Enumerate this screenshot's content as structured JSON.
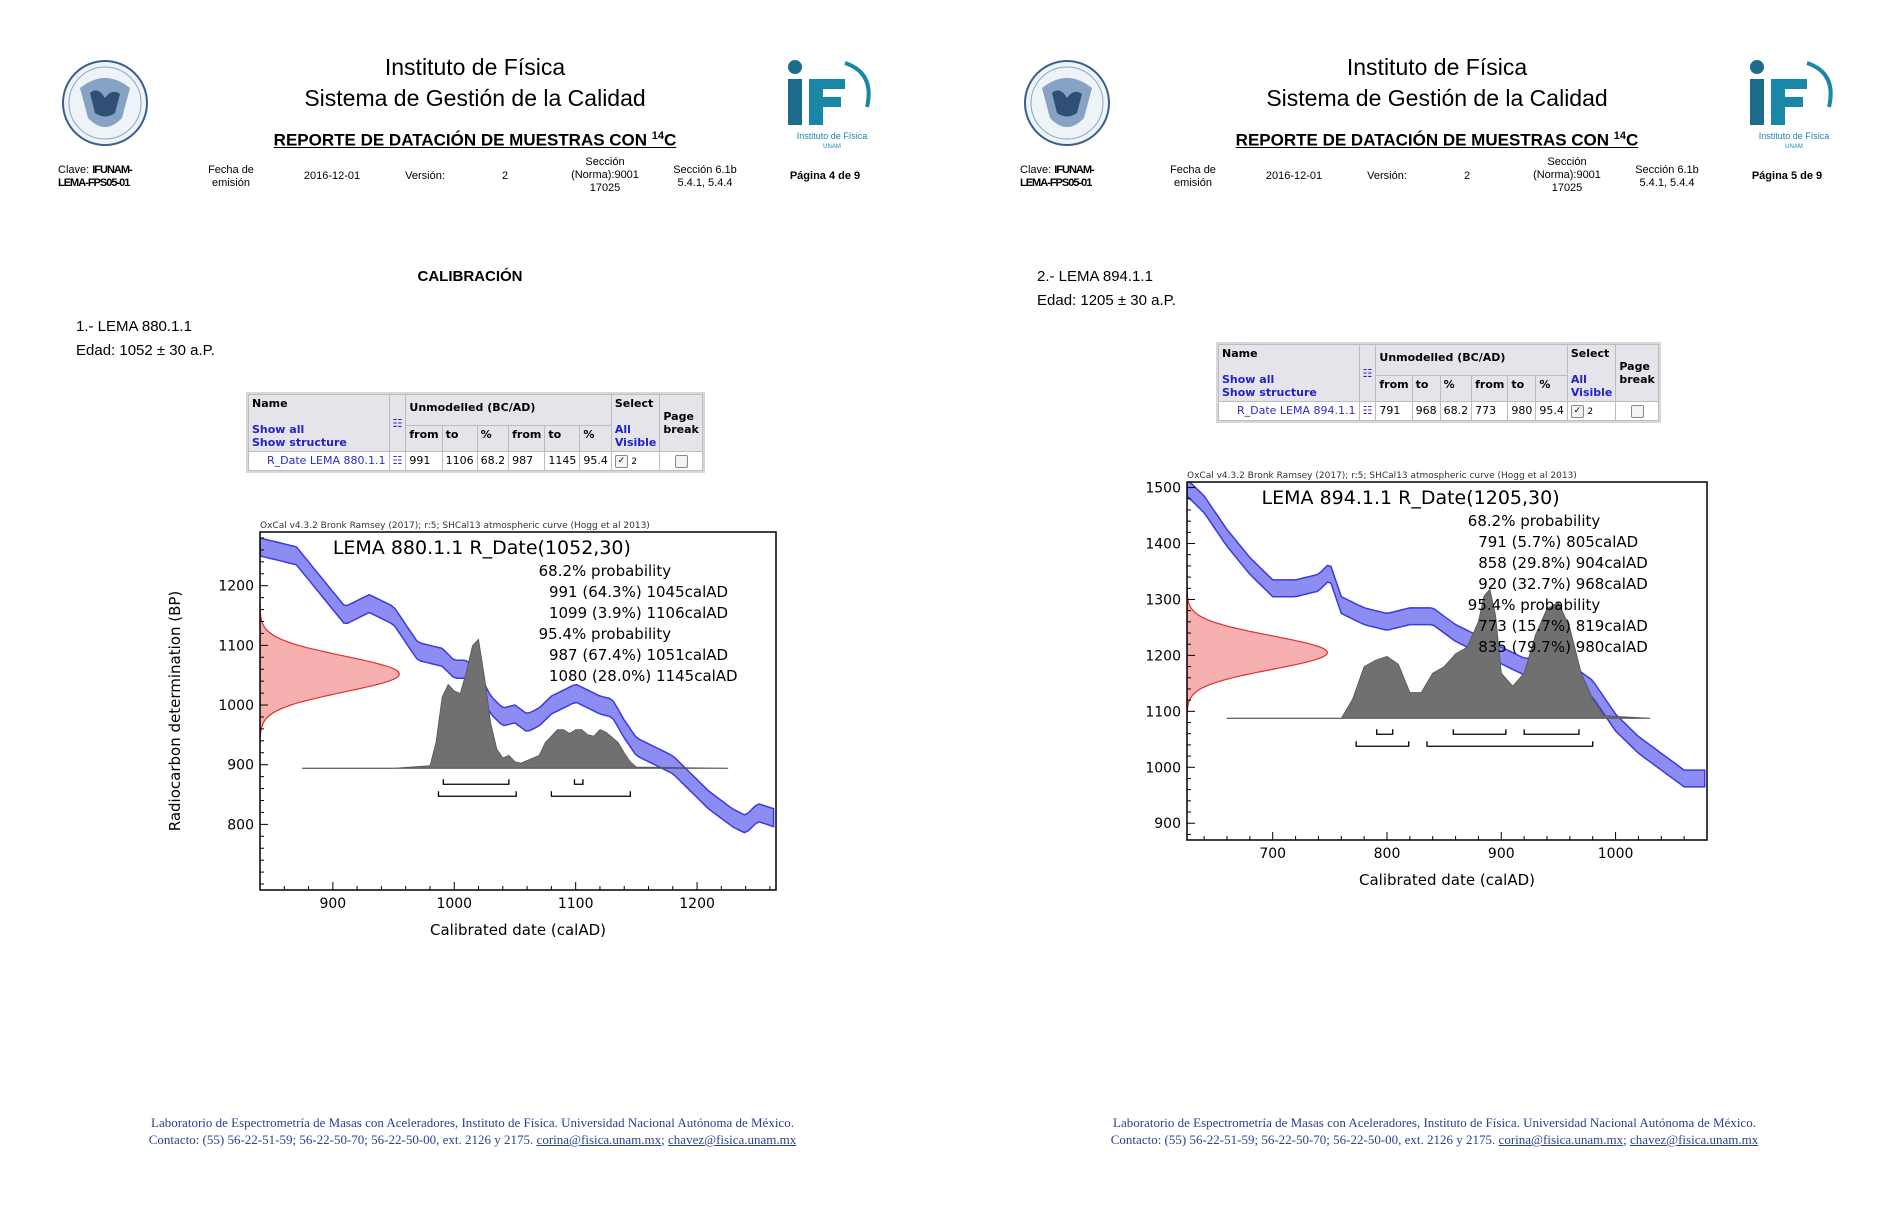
{
  "pages": [
    {
      "header": {
        "institute": "Instituto de Física",
        "system": "Sistema de Gestión de la Calidad",
        "report_prefix": "REPORTE DE DATACIÓN DE MUESTRAS CON ",
        "report_sup": "14",
        "report_suffix": "C",
        "clave_label": "Clave:",
        "clave_value_1": "IFUNAM-",
        "clave_value_2": "LEMA-FPS05-01",
        "fecha_label_1": "Fecha de",
        "fecha_label_2": "emisión",
        "fecha": "2016-12-01",
        "version_label": "Versión:",
        "version": "2",
        "seccion_norma_1": "Sección",
        "seccion_norma_2": "(Norma):9001",
        "seccion_norma_3": "17025",
        "seccion_61_1": "Sección 6.1b",
        "seccion_61_2": "5.4.1, 5.4.4",
        "page_label": "Página 4 de 9",
        "logo_if_text": "Instituto de Física",
        "logo_if_sub": "UNAM"
      },
      "section_title": "CALIBRACIÓN",
      "sample_name": "1.- LEMA 880.1.1",
      "sample_age": "Edad: 1052 ± 30 a.P.",
      "table": {
        "h_name": "Name",
        "h_show_all": "Show all",
        "h_show_structure": "Show structure",
        "h_unmodelled": "Unmodelled (BC/AD)",
        "h_select": "Select",
        "h_all": "All",
        "h_visible": "Visible",
        "h_page": "Page",
        "h_break": "break",
        "cols": [
          "from",
          "to",
          "%",
          "from",
          "to",
          "%"
        ],
        "row_name": "R_Date LEMA 880.1.1",
        "row_values": [
          "991",
          "1106",
          "68.2",
          "987",
          "1145",
          "95.4"
        ],
        "row_select": "2"
      },
      "footer": {
        "line1": "Laboratorio de Espectrometría de Masas con Aceleradores, Instituto de Física. Universidad Nacional Autónoma de México.",
        "line2_prefix": "Contacto: (55) 56-22-51-59; 56-22-50-70; 56-22-50-00, ext. 2126 y 2175. ",
        "email1": "corina@fisica.unam.mx",
        "sep": "; ",
        "email2": "chavez@fisica.unam.mx"
      }
    },
    {
      "header": {
        "institute": "Instituto de Física",
        "system": "Sistema de Gestión de la Calidad",
        "report_prefix": "REPORTE DE DATACIÓN DE MUESTRAS CON ",
        "report_sup": "14",
        "report_suffix": "C",
        "clave_label": "Clave:",
        "clave_value_1": "IFUNAM-",
        "clave_value_2": "LEMA-FPS05-01",
        "fecha_label_1": "Fecha de",
        "fecha_label_2": "emisión",
        "fecha": "2016-12-01",
        "version_label": "Versión:",
        "version": "2",
        "seccion_norma_1": "Sección",
        "seccion_norma_2": "(Norma):9001",
        "seccion_norma_3": "17025",
        "seccion_61_1": "Sección 6.1b",
        "seccion_61_2": "5.4.1, 5.4.4",
        "page_label": "Página 5 de 9",
        "logo_if_text": "Instituto de Física",
        "logo_if_sub": "UNAM"
      },
      "sample_name": "2.- LEMA 894.1.1",
      "sample_age": "Edad: 1205 ± 30 a.P.",
      "table": {
        "h_name": "Name",
        "h_show_all": "Show all",
        "h_show_structure": "Show structure",
        "h_unmodelled": "Unmodelled (BC/AD)",
        "h_select": "Select",
        "h_all": "All",
        "h_visible": "Visible",
        "h_page": "Page",
        "h_break": "break",
        "cols": [
          "from",
          "to",
          "%",
          "from",
          "to",
          "%"
        ],
        "row_name": "R_Date LEMA 894.1.1",
        "row_values": [
          "791",
          "968",
          "68.2",
          "773",
          "980",
          "95.4"
        ],
        "row_select": "2"
      },
      "footer": {
        "line1": "Laboratorio de Espectrometría de Masas con Aceleradores, Instituto de Física. Universidad Nacional Autónoma de México.",
        "line2_prefix": "Contacto: (55) 56-22-51-59; 56-22-50-70; 56-22-50-00, ext. 2126 y 2175. ",
        "email1": "corina@fisica.unam.mx",
        "sep": "; ",
        "email2": "chavez@fisica.unam.mx"
      }
    }
  ],
  "chart_data": [
    {
      "type": "area",
      "credit": "OxCal v4.3.2 Bronk Ramsey (2017); r:5; SHCal13 atmospheric curve (Hogg et al 2013)",
      "title": "LEMA 880.1.1 R_Date(1052,30)",
      "annotations": [
        "68.2% probability",
        "991 (64.3%) 1045calAD",
        "1099 (3.9%) 1106calAD",
        "95.4% probability",
        "987 (67.4%) 1051calAD",
        "1080 (28.0%) 1145calAD"
      ],
      "xlabel": "Calibrated date (calAD)",
      "ylabel": "Radiocarbon determination (BP)",
      "xlim": [
        840,
        1265
      ],
      "ylim": [
        690,
        1290
      ],
      "xticks": [
        900,
        1000,
        1100,
        1200
      ],
      "yticks": [
        800,
        900,
        1000,
        1100,
        1200
      ],
      "radiocarbon_date": {
        "mean": 1052,
        "sigma": 30
      },
      "calibration_curve": {
        "x": [
          840,
          850,
          870,
          890,
          910,
          930,
          950,
          970,
          990,
          1000,
          1010,
          1020,
          1030,
          1040,
          1050,
          1060,
          1070,
          1080,
          1090,
          1100,
          1110,
          1120,
          1130,
          1140,
          1150,
          1160,
          1170,
          1180,
          1190,
          1200,
          1210,
          1220,
          1230,
          1240,
          1250,
          1265
        ],
        "y": [
          1265,
          1260,
          1250,
          1200,
          1150,
          1170,
          1150,
          1090,
          1080,
          1060,
          1060,
          1040,
          1000,
          980,
          985,
          970,
          980,
          1000,
          1010,
          1020,
          1010,
          1000,
          995,
          960,
          930,
          920,
          910,
          900,
          880,
          860,
          840,
          825,
          810,
          800,
          820,
          810
        ],
        "halfwidth": 15
      },
      "posterior": {
        "x": [
          875,
          950,
          980,
          985,
          990,
          995,
          1000,
          1005,
          1010,
          1015,
          1020,
          1025,
          1030,
          1035,
          1040,
          1045,
          1050,
          1055,
          1060,
          1065,
          1070,
          1075,
          1080,
          1085,
          1090,
          1095,
          1100,
          1105,
          1110,
          1115,
          1120,
          1125,
          1130,
          1135,
          1140,
          1145,
          1150,
          1225
        ],
        "density": [
          0.0,
          0.0,
          0.02,
          0.2,
          0.55,
          0.65,
          0.6,
          0.58,
          0.75,
          0.95,
          1.0,
          0.7,
          0.35,
          0.15,
          0.08,
          0.1,
          0.05,
          0.04,
          0.06,
          0.08,
          0.1,
          0.2,
          0.25,
          0.3,
          0.3,
          0.27,
          0.3,
          0.3,
          0.26,
          0.25,
          0.3,
          0.28,
          0.24,
          0.2,
          0.12,
          0.05,
          0.01,
          0.0
        ]
      },
      "ranges_68": [
        [
          991,
          1045
        ],
        [
          1099,
          1106
        ]
      ],
      "ranges_95": [
        [
          987,
          1051
        ],
        [
          1080,
          1145
        ]
      ]
    },
    {
      "type": "area",
      "credit": "OxCal v4.3.2 Bronk Ramsey (2017); r:5; SHCal13 atmospheric curve (Hogg et al 2013)",
      "title": "LEMA 894.1.1 R_Date(1205,30)",
      "annotations": [
        "68.2% probability",
        "791 (5.7%) 805calAD",
        "858 (29.8%) 904calAD",
        "920 (32.7%) 968calAD",
        "95.4% probability",
        "773 (15.7%) 819calAD",
        "835 (79.7%) 980calAD"
      ],
      "xlabel": "Calibrated date (calAD)",
      "ylabel": "Radiocarbon determination (BP)",
      "xlim": [
        625,
        1080
      ],
      "ylim": [
        870,
        1510
      ],
      "xticks": [
        700,
        800,
        900,
        1000
      ],
      "yticks": [
        900,
        1000,
        1100,
        1200,
        1300,
        1400,
        1500
      ],
      "radiocarbon_date": {
        "mean": 1205,
        "sigma": 30
      },
      "calibration_curve": {
        "x": [
          625,
          640,
          660,
          680,
          700,
          720,
          740,
          750,
          760,
          780,
          800,
          820,
          840,
          860,
          880,
          900,
          920,
          940,
          960,
          980,
          1000,
          1020,
          1040,
          1060,
          1080
        ],
        "y": [
          1500,
          1470,
          1410,
          1360,
          1320,
          1320,
          1330,
          1350,
          1290,
          1270,
          1260,
          1270,
          1270,
          1240,
          1220,
          1200,
          1180,
          1180,
          1170,
          1140,
          1080,
          1040,
          1010,
          980,
          980
        ],
        "halfwidth": 15
      },
      "posterior": {
        "x": [
          660,
          760,
          770,
          780,
          790,
          800,
          810,
          820,
          830,
          840,
          850,
          860,
          870,
          880,
          885,
          890,
          895,
          900,
          910,
          920,
          930,
          940,
          950,
          960,
          970,
          980,
          990,
          1030
        ],
        "density": [
          0.0,
          0.0,
          0.15,
          0.4,
          0.45,
          0.48,
          0.42,
          0.2,
          0.2,
          0.35,
          0.4,
          0.5,
          0.55,
          0.75,
          0.95,
          1.0,
          0.8,
          0.35,
          0.25,
          0.35,
          0.65,
          0.85,
          0.9,
          0.7,
          0.35,
          0.15,
          0.02,
          0.0
        ]
      },
      "ranges_68": [
        [
          791,
          805
        ],
        [
          858,
          904
        ],
        [
          920,
          968
        ]
      ],
      "ranges_95": [
        [
          773,
          819
        ],
        [
          835,
          980
        ]
      ]
    }
  ]
}
